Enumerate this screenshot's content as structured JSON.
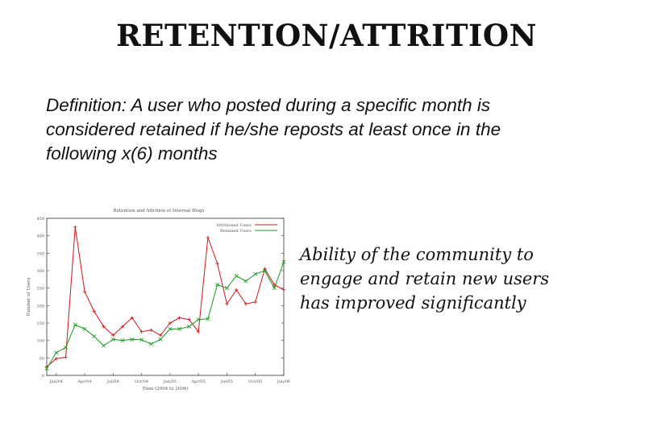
{
  "slide": {
    "title": "RETENTION/ATTRITION",
    "definition_prefix": "Definition: A user who posted during a specific month is considered retained if he/she reposts at least once in the following ",
    "definition_var": "x",
    "definition_suffix": "(6) months",
    "callout": "Ability of the community to engage and retain new users has improved significantly"
  },
  "chart_data": {
    "type": "line",
    "title": "Retention and Attrition of Internal Blogs",
    "xlabel": "Time (2004 to 2006)",
    "ylabel": "Number of Users",
    "x_tick_labels": [
      "Jan/04",
      "Apr/04",
      "Jul/04",
      "Oct/04",
      "Jan/05",
      "Apr/05",
      "Jul/05",
      "Oct/05",
      "Jan/06"
    ],
    "yticks": [
      0,
      50,
      100,
      150,
      200,
      250,
      300,
      350,
      400,
      450
    ],
    "ylim": [
      0,
      450
    ],
    "legend_position": "top-right",
    "series": [
      {
        "name": "Attritioned Users",
        "color": "#d01818",
        "marker": "plus",
        "values": [
          25,
          48,
          52,
          425,
          240,
          183,
          140,
          115,
          140,
          165,
          125,
          130,
          115,
          150,
          165,
          160,
          125,
          395,
          320,
          205,
          245,
          205,
          210,
          305,
          260,
          245
        ]
      },
      {
        "name": "Retained Users",
        "color": "#1a9a1a",
        "marker": "x",
        "values": [
          20,
          65,
          80,
          145,
          133,
          112,
          85,
          103,
          100,
          103,
          102,
          90,
          103,
          133,
          133,
          140,
          160,
          162,
          260,
          250,
          285,
          270,
          290,
          300,
          250,
          325
        ]
      }
    ]
  }
}
